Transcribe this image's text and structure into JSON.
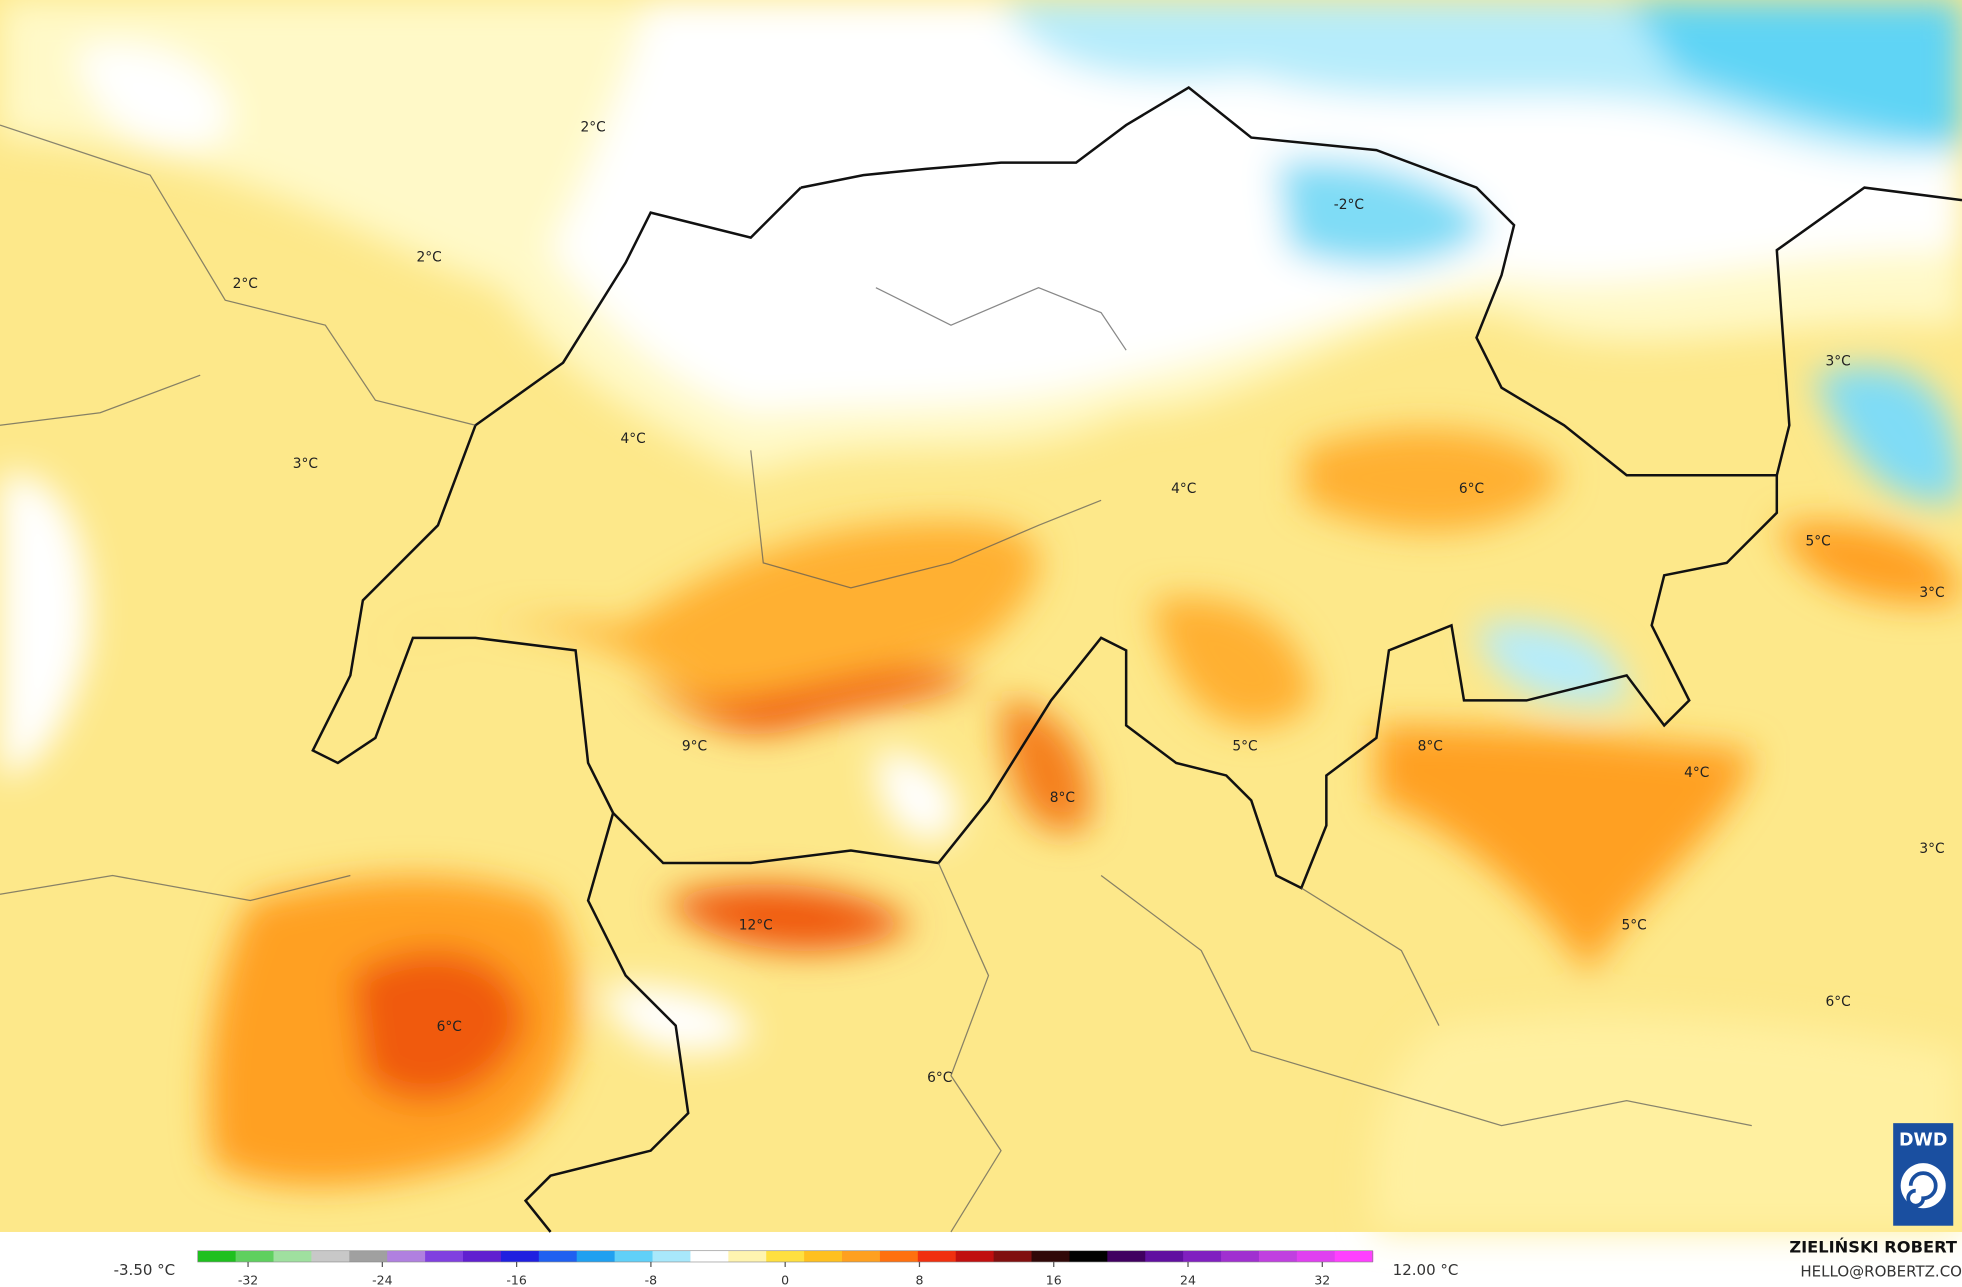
{
  "map": {
    "labels": [
      "2°C",
      "2°C",
      "2°C",
      "-2°C",
      "3°C",
      "4°C",
      "4°C",
      "6°C",
      "3°C",
      "5°C",
      "3°C",
      "9°C",
      "5°C",
      "8°C",
      "4°C",
      "8°C",
      "12°C",
      "3°C",
      "5°C",
      "6°C",
      "6°C",
      "6°C"
    ],
    "logo": "DWD"
  },
  "colorbar": {
    "min_label": "-3.50 °C",
    "max_label": "12.00 °C",
    "range": [
      -35,
      35
    ],
    "ticks": [
      -32,
      -24,
      -16,
      -8,
      0,
      8,
      16,
      24,
      32
    ],
    "colors": [
      "#1fc01f",
      "#5fd05f",
      "#9fe09f",
      "#c8c8c8",
      "#a0a0a0",
      "#b080e0",
      "#8040e0",
      "#6020d0",
      "#2020e0",
      "#2060f0",
      "#20a0f0",
      "#60d0f8",
      "#a8e8fb",
      "#ffffff",
      "#fff4b0",
      "#ffe040",
      "#ffc020",
      "#ffa020",
      "#ff7010",
      "#f03010",
      "#c01010",
      "#801010",
      "#300808",
      "#000000",
      "#400060",
      "#6010a0",
      "#8020c0",
      "#a030d0",
      "#c040e0",
      "#e040f0",
      "#ff40ff"
    ]
  },
  "footer": {
    "author": "ZIELIŃSKI ROBERT",
    "contact": "HELLO@ROBERTZ.CO"
  }
}
